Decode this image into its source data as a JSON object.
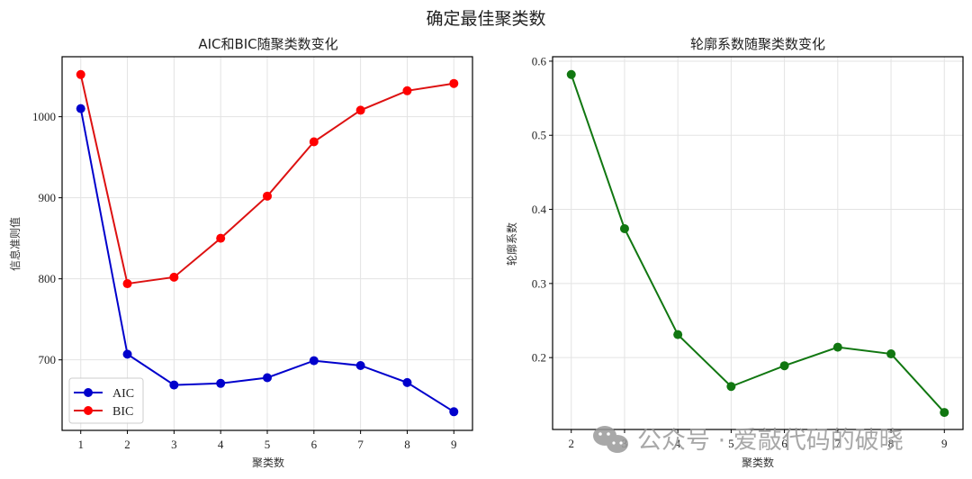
{
  "figure": {
    "suptitle": "确定最佳聚类数",
    "watermark": "公众号 · 爱敲代码的破晓"
  },
  "colors": {
    "aic": "#0000cc",
    "bic": "#dd1111",
    "silhouette": "#117711",
    "grid": "#e3e3e3",
    "axis": "#000000",
    "watermark": "#9a9a9a"
  },
  "chart_data": [
    {
      "type": "line",
      "title": "AIC和BIC随聚类数变化",
      "xlabel": "聚类数",
      "ylabel": "信息准则值",
      "x": [
        1,
        2,
        3,
        4,
        5,
        6,
        7,
        8,
        9
      ],
      "series": [
        {
          "name": "AIC",
          "color": "#0000cc",
          "marker": "circle",
          "values": [
            1010,
            707,
            669,
            671,
            678,
            699,
            693,
            672,
            636
          ]
        },
        {
          "name": "BIC",
          "color": "#dd1111",
          "marker": "circle",
          "values": [
            1052,
            794,
            802,
            850,
            902,
            969,
            1008,
            1032,
            1041
          ]
        }
      ],
      "xticks": [
        1,
        2,
        3,
        4,
        5,
        6,
        7,
        8,
        9
      ],
      "yticks": [
        700,
        800,
        900,
        1000
      ],
      "xlim": [
        0.6,
        9.4
      ],
      "ylim": [
        613,
        1074
      ],
      "grid": true,
      "legend": {
        "position": "lower left",
        "entries": [
          "AIC",
          "BIC"
        ]
      }
    },
    {
      "type": "line",
      "title": "轮廓系数随聚类数变化",
      "xlabel": "聚类数",
      "ylabel": "轮廓系数",
      "x": [
        2,
        3,
        4,
        5,
        6,
        7,
        8,
        9
      ],
      "series": [
        {
          "name": "轮廓系数",
          "color": "#117711",
          "marker": "circle",
          "values": [
            0.582,
            0.374,
            0.231,
            0.161,
            0.189,
            0.214,
            0.205,
            0.126
          ]
        }
      ],
      "xticks": [
        2,
        3,
        4,
        5,
        6,
        7,
        8,
        9
      ],
      "yticks": [
        0.2,
        0.3,
        0.4,
        0.5,
        0.6
      ],
      "ytick_labels": [
        "0.2",
        "0.3",
        "0.4",
        "0.5",
        "0.6"
      ],
      "xlim": [
        1.65,
        9.35
      ],
      "ylim": [
        0.103,
        0.606
      ],
      "grid": true,
      "legend": null
    }
  ]
}
